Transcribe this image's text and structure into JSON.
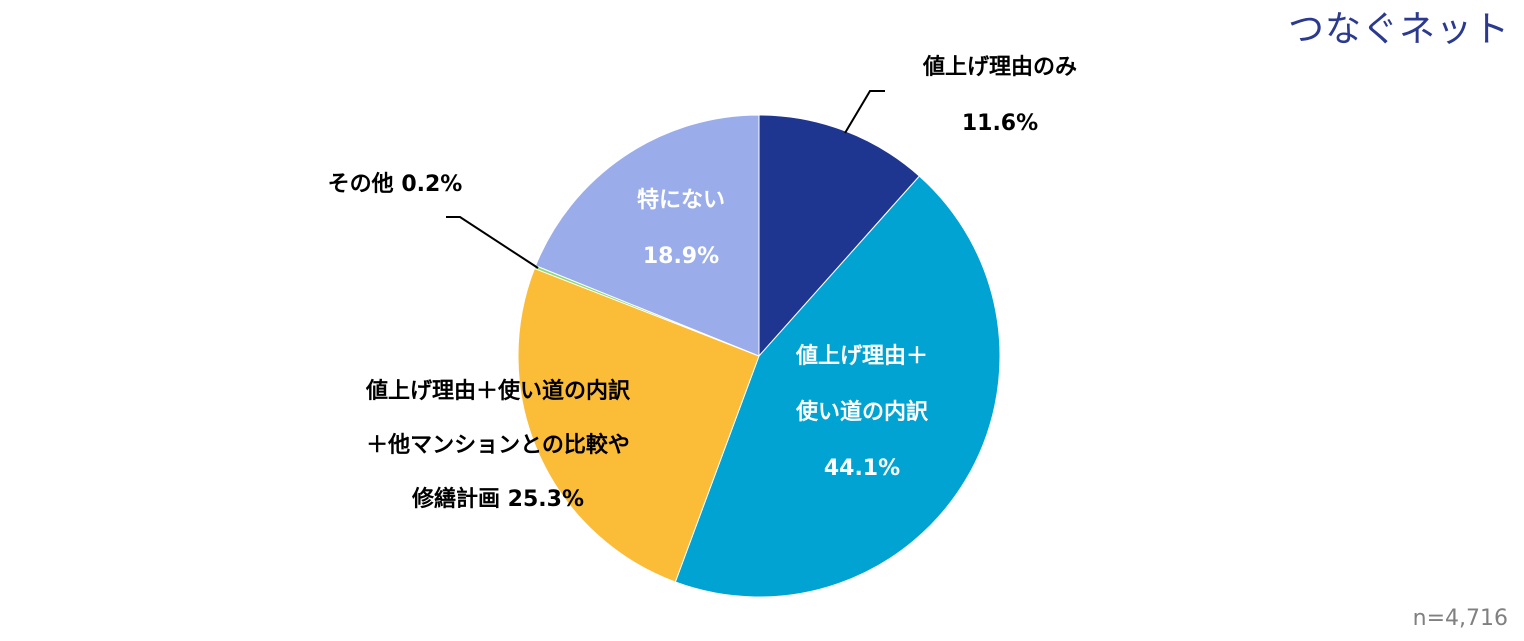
{
  "brand": "つなぐネット",
  "sample_size": "n=4,716",
  "chart_data": {
    "type": "pie",
    "slices": [
      {
        "label_lines": [
          "値上げ理由のみ"
        ],
        "value": 11.6,
        "value_text": "11.6%",
        "color": "#1f3691",
        "label_color": "#000000"
      },
      {
        "label_lines": [
          "値上げ理由＋",
          "使い道の内訳"
        ],
        "value": 44.1,
        "value_text": "44.1%",
        "color": "#00a3d1",
        "label_color": "#ffffff"
      },
      {
        "label_lines": [
          "値上げ理由＋使い道の内訳",
          "＋他マンションとの比較や",
          "修繕計画 25.3%"
        ],
        "value": 25.3,
        "value_text": "",
        "color": "#fbbc38",
        "label_color": "#000000"
      },
      {
        "label_lines": [
          "その他 0.2%"
        ],
        "value": 0.2,
        "value_text": "",
        "color": "#8ed973",
        "label_color": "#000000"
      },
      {
        "label_lines": [
          "特にない"
        ],
        "value": 18.9,
        "value_text": "18.9%",
        "color": "#9aadea",
        "label_color": "#ffffff"
      }
    ]
  }
}
